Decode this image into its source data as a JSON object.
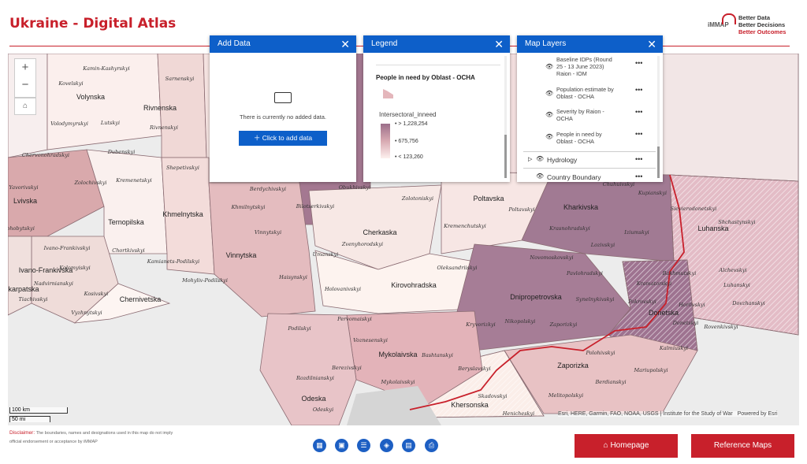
{
  "header": {
    "title": "Ukraine - Digital Atlas",
    "logo": "iMMAP",
    "tagline": [
      "Better Data",
      "Better Decisions",
      "Better Outcomes"
    ]
  },
  "add_data": {
    "title": "Add Data",
    "message": "There is currently no added data.",
    "button": "Click to add data"
  },
  "legend": {
    "title": "Legend",
    "layer": "People in need by Oblast - OCHA",
    "field": "Intersectoral_inneed",
    "stops": [
      "> 1,228,254",
      "675,756",
      "< 123,260"
    ]
  },
  "map_layers": {
    "title": "Map Layers",
    "items": [
      "Baseline IDPs (Round 25 - 13 June 2023) Raion - IOM",
      "Population estimate by Oblast - OCHA",
      "Severity by Raion - OCHA",
      "People in need by Oblast - OCHA"
    ],
    "groups": [
      "Hydrology",
      "Country Boundary"
    ]
  },
  "map": {
    "oblasts": [
      "Volynska",
      "Rivnenska",
      "Lvivska",
      "Ternopilska",
      "Khmelnytska",
      "Vinnytska",
      "Ivano-Frankivska",
      "karpatska",
      "Chernivetska",
      "Cherkaska",
      "Kirovohradska",
      "Poltavska",
      "Kharkivska",
      "Luhanska",
      "Dnipropetrovska",
      "Donetska",
      "Zaporizka",
      "Mykolaivska",
      "Khersonska",
      "Odeska"
    ],
    "raions": [
      "Kovelskyi",
      "Kamin-Kashyrskyi",
      "Sarnenskyi",
      "Lutskyi",
      "Volodymyrskyi",
      "Rivnenskyi",
      "Dubenskyi",
      "Chervonohradskyi",
      "Kremenetskyi",
      "Shepetivskyi",
      "Zolochivskyi",
      "Yavorivskyi",
      "Drohobytskyi",
      "Berdychivskyi",
      "Khmilnytskyi",
      "Vinnytskyi",
      "Chortkivskyi",
      "Kamianets-Podilskyi",
      "Ivano-Frankivskyi",
      "Kolomyiskyi",
      "Nadvirnianskyi",
      "Kosivskyi",
      "Tiachivskyi",
      "Vyzhnytskyi",
      "Mohyliv-Podilskyi",
      "Haisynskyi",
      "Umanskyi",
      "Zvenyhorodskyi",
      "Bilotserkivskyi",
      "Obukhivskyi",
      "Zolotoniskyi",
      "Kremenchutskyi",
      "Poltavskyi",
      "Holovanivskyi",
      "Oleksandriiskyi",
      "Podilskyi",
      "Pervomaiskyi",
      "Voznesenskyi",
      "Bashtanskyi",
      "Berezivskyi",
      "Mykolaivskyi",
      "Rozdilnianskyi",
      "Odeskyi",
      "Beryslavskyi",
      "Skadovskyi",
      "Henicheskyi",
      "Novomoskovskyi",
      "Pavlohradskyi",
      "Synelnykivskyi",
      "Kryvorizkyi",
      "Nikopolskyi",
      "Zaporizkyi",
      "Polohivskyi",
      "Berdianskyi",
      "Melitopolskyi",
      "Kramatorskyi",
      "Pokrovskyi",
      "Bakhmutskyi",
      "Horlivskyi",
      "Donetskyi",
      "Kalmiuskyi",
      "Mariupolskyi",
      "Lozivskyi",
      "Iziumskyi",
      "Krasnohradskyi",
      "Chuhuivskyi",
      "Kupianskyi",
      "Sievierodonetskyi",
      "Shchastynskyi",
      "Luhanskyi",
      "Alchevskyi",
      "Dovzhanskyi",
      "Rovenkivskyi"
    ],
    "scale": [
      "100 km",
      "50 mi"
    ],
    "attribution": "Esri, HERE, Garmin, FAO, NOAA, USGS | Institute for the Study of War",
    "powered": "Powered by Esri"
  },
  "disclaimer": {
    "label": "Disclaimer:",
    "text": "The boundaries, names and designations used in this map do not imply official endorsement or acceptance by iMMAP"
  },
  "buttons": [
    "Homepage",
    "Reference Maps"
  ]
}
